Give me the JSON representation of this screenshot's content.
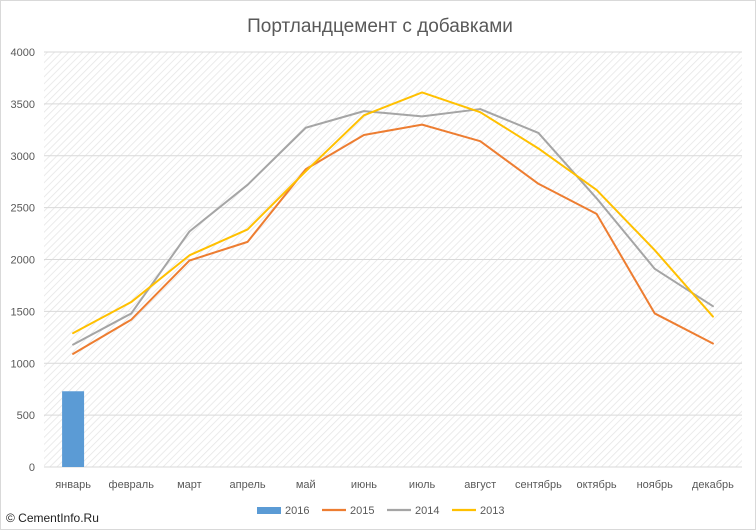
{
  "chart_data": {
    "type": "line",
    "title": "Портландцемент с добавками",
    "categories": [
      "январь",
      "февраль",
      "март",
      "апрель",
      "май",
      "июнь",
      "июль",
      "август",
      "сентябрь",
      "октябрь",
      "ноябрь",
      "декабрь"
    ],
    "ylim": [
      0,
      4000
    ],
    "yticks": [
      0,
      500,
      1000,
      1500,
      2000,
      2500,
      3000,
      3500,
      4000
    ],
    "grid": true,
    "legend_position": "bottom",
    "series": [
      {
        "name": "2016",
        "kind": "bar",
        "color": "#5b9bd5",
        "values": [
          730,
          null,
          null,
          null,
          null,
          null,
          null,
          null,
          null,
          null,
          null,
          null
        ]
      },
      {
        "name": "2015",
        "kind": "line",
        "color": "#ed7d31",
        "values": [
          1090,
          1420,
          1990,
          2170,
          2870,
          3200,
          3300,
          3140,
          2730,
          2440,
          1480,
          1190
        ]
      },
      {
        "name": "2014",
        "kind": "line",
        "color": "#a5a5a5",
        "values": [
          1180,
          1480,
          2270,
          2720,
          3270,
          3430,
          3380,
          3450,
          3220,
          2590,
          1910,
          1550
        ]
      },
      {
        "name": "2013",
        "kind": "line",
        "color": "#ffc000",
        "values": [
          1290,
          1590,
          2040,
          2290,
          2850,
          3390,
          3610,
          3420,
          3070,
          2670,
          2090,
          1450
        ]
      }
    ]
  },
  "watermark": {
    "text": "© CementInfo.Ru"
  },
  "colors": {
    "background": "#ffffff",
    "grid": "#d9d9d9",
    "text": "#595959"
  }
}
